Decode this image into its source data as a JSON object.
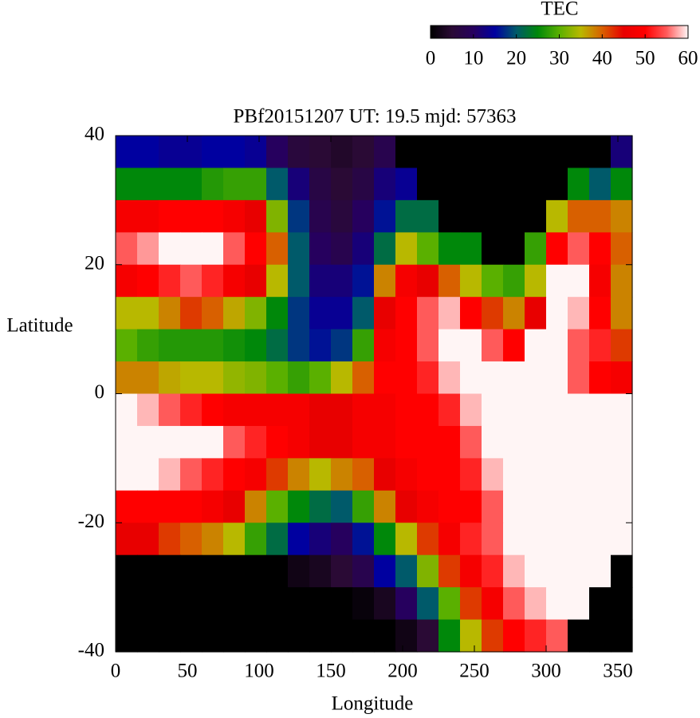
{
  "chart_data": {
    "type": "heatmap",
    "title": "PBf20151207  UT: 19.5  mjd: 57363",
    "x_label": "Longitude",
    "y_label": "Latitude",
    "xlim": [
      0,
      360
    ],
    "xticks": [
      0,
      50,
      100,
      150,
      200,
      250,
      300,
      350
    ],
    "ylim": [
      -40,
      40
    ],
    "yticks": [
      -40,
      -20,
      0,
      20,
      40
    ],
    "x": [
      7.5,
      22.5,
      37.5,
      52.5,
      67.5,
      82.5,
      97.5,
      112.5,
      127.5,
      142.5,
      157.5,
      172.5,
      187.5,
      202.5,
      217.5,
      232.5,
      247.5,
      262.5,
      277.5,
      292.5,
      307.5,
      322.5,
      337.5,
      352.5
    ],
    "y": [
      37.5,
      32.5,
      27.5,
      22.5,
      17.5,
      12.5,
      7.5,
      2.5,
      -2.5,
      -7.5,
      -12.5,
      -17.5,
      -22.5,
      -27.5,
      -32.5,
      -37.5
    ],
    "z": [
      [
        15,
        15,
        14,
        14,
        15,
        15,
        14,
        10,
        6,
        5,
        4,
        5,
        8,
        0,
        0,
        0,
        0,
        0,
        0,
        0,
        0,
        0,
        0,
        12
      ],
      [
        25,
        25,
        25,
        25,
        27,
        28,
        28,
        20,
        12,
        7,
        5,
        7,
        12,
        14,
        0,
        0,
        0,
        0,
        0,
        0,
        0,
        25,
        20,
        25
      ],
      [
        48,
        48,
        50,
        50,
        50,
        48,
        45,
        32,
        18,
        8,
        6,
        10,
        16,
        22,
        22,
        0,
        0,
        0,
        0,
        0,
        35,
        40,
        40,
        38
      ],
      [
        55,
        57,
        60,
        60,
        60,
        55,
        50,
        40,
        20,
        10,
        8,
        12,
        22,
        35,
        30,
        25,
        25,
        0,
        0,
        28,
        50,
        55,
        50,
        40
      ],
      [
        48,
        50,
        52,
        55,
        52,
        48,
        45,
        35,
        20,
        12,
        12,
        16,
        38,
        48,
        45,
        40,
        35,
        30,
        28,
        35,
        60,
        60,
        48,
        38
      ],
      [
        35,
        35,
        38,
        42,
        40,
        36,
        32,
        25,
        18,
        14,
        14,
        20,
        45,
        50,
        55,
        58,
        50,
        42,
        38,
        45,
        60,
        58,
        50,
        38
      ],
      [
        30,
        28,
        27,
        27,
        27,
        26,
        25,
        22,
        18,
        16,
        18,
        28,
        48,
        50,
        55,
        60,
        60,
        55,
        50,
        60,
        60,
        55,
        52,
        42
      ],
      [
        38,
        38,
        36,
        35,
        35,
        33,
        32,
        30,
        28,
        30,
        35,
        40,
        50,
        50,
        52,
        58,
        60,
        60,
        60,
        60,
        60,
        55,
        50,
        48
      ],
      [
        60,
        58,
        55,
        52,
        50,
        48,
        48,
        48,
        48,
        45,
        45,
        48,
        48,
        50,
        50,
        52,
        58,
        60,
        60,
        60,
        60,
        60,
        60,
        60
      ],
      [
        60,
        60,
        60,
        60,
        60,
        55,
        52,
        50,
        48,
        45,
        45,
        48,
        48,
        50,
        50,
        50,
        55,
        60,
        60,
        60,
        60,
        60,
        60,
        60
      ],
      [
        60,
        60,
        58,
        55,
        52,
        50,
        48,
        42,
        38,
        35,
        38,
        40,
        45,
        48,
        50,
        50,
        52,
        58,
        60,
        60,
        60,
        60,
        60,
        60
      ],
      [
        50,
        50,
        50,
        50,
        48,
        45,
        38,
        30,
        25,
        22,
        20,
        28,
        38,
        45,
        48,
        50,
        50,
        55,
        60,
        60,
        60,
        60,
        60,
        60
      ],
      [
        45,
        45,
        42,
        40,
        38,
        35,
        28,
        22,
        15,
        12,
        10,
        16,
        25,
        35,
        42,
        48,
        52,
        55,
        60,
        60,
        60,
        60,
        60,
        60
      ],
      [
        0,
        0,
        0,
        0,
        0,
        0,
        0,
        0,
        2,
        3,
        5,
        8,
        15,
        20,
        32,
        42,
        48,
        52,
        58,
        60,
        60,
        60,
        60,
        0
      ],
      [
        0,
        0,
        0,
        0,
        0,
        0,
        0,
        0,
        0,
        0,
        0,
        1,
        3,
        10,
        20,
        30,
        42,
        48,
        55,
        58,
        60,
        60,
        0,
        0
      ],
      [
        0,
        0,
        0,
        0,
        0,
        0,
        0,
        0,
        0,
        0,
        0,
        0,
        0,
        2,
        5,
        25,
        35,
        42,
        50,
        52,
        55,
        0,
        0,
        0
      ]
    ],
    "colorbar": {
      "title": "TEC",
      "lim": [
        0,
        60
      ],
      "ticks": [
        0,
        10,
        20,
        30,
        40,
        50,
        60
      ]
    },
    "colorscale": [
      [
        0,
        "#000000"
      ],
      [
        5,
        "#2a0a35"
      ],
      [
        10,
        "#26005e"
      ],
      [
        15,
        "#0000a0"
      ],
      [
        20,
        "#005a6a"
      ],
      [
        25,
        "#00880a"
      ],
      [
        30,
        "#5ab000"
      ],
      [
        35,
        "#b8b800"
      ],
      [
        40,
        "#d86000"
      ],
      [
        45,
        "#e80000"
      ],
      [
        50,
        "#ff0000"
      ],
      [
        55,
        "#ff5a5a"
      ],
      [
        60,
        "#fff5f5"
      ]
    ]
  }
}
